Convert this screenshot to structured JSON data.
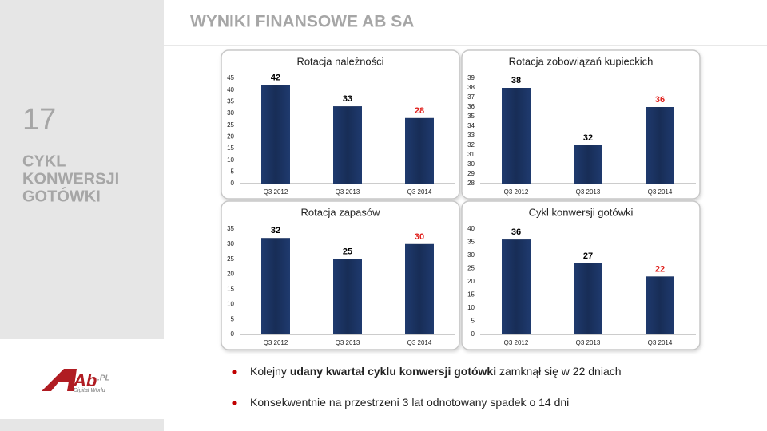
{
  "slide": {
    "title": "WYNIKI FINANSOWE AB SA",
    "number": "17",
    "section": [
      "CYKL",
      "KONWERSJI",
      "GOTÓWKI"
    ],
    "bullets": [
      [
        "Kolejny ",
        "udany kwartał cyklu konwersji gotówki",
        " zamknął się w 22 dniach"
      ],
      [
        "Konsekwentnie na przestrzeni 3 lat odnotowany spadek o 14 dni"
      ]
    ],
    "logo": {
      "mark": "Ab",
      "suffix": ".PL",
      "tagline": "Digital World"
    }
  },
  "chart_data": [
    {
      "type": "bar",
      "title": "Rotacja należności",
      "categories": [
        "Q3 2012",
        "Q3 2013",
        "Q3 2014"
      ],
      "values": [
        42,
        33,
        28
      ],
      "color": "#1f3a6e",
      "label_colors": [
        "#000000",
        "#000000",
        "#e0201c"
      ],
      "ylim": [
        0,
        45
      ],
      "yticks": [
        0,
        5,
        10,
        15,
        20,
        25,
        30,
        35,
        40,
        45
      ],
      "grid": false
    },
    {
      "type": "bar",
      "title": "Rotacja zobowiązań kupieckich",
      "categories": [
        "Q3 2012",
        "Q3 2013",
        "Q3 2014"
      ],
      "values": [
        38,
        32,
        36
      ],
      "color": "#1f3a6e",
      "label_colors": [
        "#000000",
        "#000000",
        "#e0201c"
      ],
      "ylim": [
        28,
        39
      ],
      "yticks": [
        28,
        29,
        30,
        31,
        32,
        33,
        34,
        35,
        36,
        37,
        38,
        39
      ],
      "grid": false
    },
    {
      "type": "bar",
      "title": "Rotacja zapasów",
      "categories": [
        "Q3 2012",
        "Q3 2013",
        "Q3 2014"
      ],
      "values": [
        32,
        25,
        30
      ],
      "color": "#1f3a6e",
      "label_colors": [
        "#000000",
        "#000000",
        "#e0201c"
      ],
      "ylim": [
        0,
        35
      ],
      "yticks": [
        0,
        5,
        10,
        15,
        20,
        25,
        30,
        35
      ],
      "grid": false
    },
    {
      "type": "bar",
      "title": "Cykl konwersji gotówki",
      "categories": [
        "Q3 2012",
        "Q3 2013",
        "Q3 2014"
      ],
      "values": [
        36,
        27,
        22
      ],
      "color": "#1f3a6e",
      "label_colors": [
        "#000000",
        "#000000",
        "#e0201c"
      ],
      "ylim": [
        0,
        40
      ],
      "yticks": [
        0,
        5,
        10,
        15,
        20,
        25,
        30,
        35,
        40
      ],
      "grid": false
    }
  ]
}
